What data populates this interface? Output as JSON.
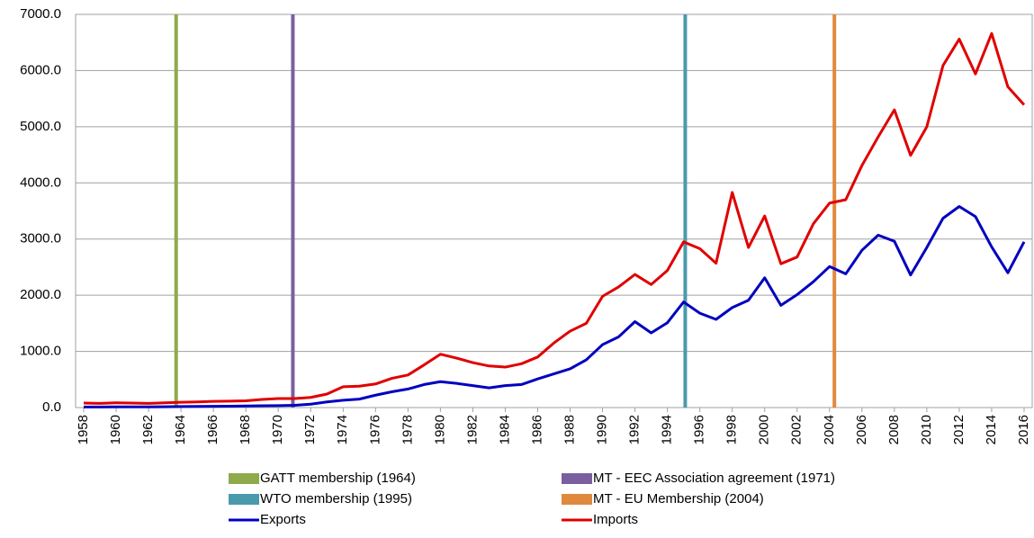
{
  "chart_data": {
    "type": "line",
    "x": [
      1958,
      1959,
      1960,
      1961,
      1962,
      1963,
      1964,
      1965,
      1966,
      1967,
      1968,
      1969,
      1970,
      1971,
      1972,
      1973,
      1974,
      1975,
      1976,
      1977,
      1978,
      1979,
      1980,
      1981,
      1982,
      1983,
      1984,
      1985,
      1986,
      1987,
      1988,
      1989,
      1990,
      1991,
      1992,
      1993,
      1994,
      1995,
      1996,
      1997,
      1998,
      1999,
      2000,
      2001,
      2002,
      2003,
      2004,
      2005,
      2006,
      2007,
      2008,
      2009,
      2010,
      2011,
      2012,
      2013,
      2014,
      2015,
      2016
    ],
    "xlim": [
      1957.5,
      2016.5
    ],
    "xticks": [
      1958,
      1960,
      1962,
      1964,
      1966,
      1968,
      1970,
      1972,
      1974,
      1976,
      1978,
      1980,
      1982,
      1984,
      1986,
      1988,
      1990,
      1992,
      1994,
      1996,
      1998,
      2000,
      2002,
      2004,
      2006,
      2008,
      2010,
      2012,
      2014,
      2016
    ],
    "ylim": [
      0,
      7000
    ],
    "yticks": [
      {
        "value": 0,
        "label": "0.0"
      },
      {
        "value": 1000,
        "label": "1000.0"
      },
      {
        "value": 2000,
        "label": "2000.0"
      },
      {
        "value": 3000,
        "label": "3000.0"
      },
      {
        "value": 4000,
        "label": "4000.0"
      },
      {
        "value": 5000,
        "label": "5000.0"
      },
      {
        "value": 6000,
        "label": "6000.0"
      },
      {
        "value": 7000,
        "label": "7000.0"
      }
    ],
    "grid": true,
    "events": [
      {
        "name": "GATT membership (1964)",
        "color": "#8faa4a",
        "x": 1963.7
      },
      {
        "name": "MT - EEC Association agreement (1971)",
        "color": "#7a5fa0",
        "x": 1970.9
      },
      {
        "name": "WTO membership (1995)",
        "color": "#4a9aad",
        "x": 1995.1
      },
      {
        "name": "MT - EU Membership (2004)",
        "color": "#e0893e",
        "x": 2004.3
      }
    ],
    "series": [
      {
        "name": "Exports",
        "color": "#0000c0",
        "values": [
          10,
          10,
          12,
          12,
          12,
          15,
          18,
          20,
          22,
          25,
          28,
          32,
          35,
          40,
          60,
          100,
          130,
          150,
          220,
          280,
          330,
          410,
          460,
          430,
          390,
          350,
          390,
          410,
          510,
          600,
          690,
          850,
          1120,
          1260,
          1530,
          1330,
          1510,
          1880,
          1680,
          1570,
          1780,
          1910,
          2310,
          1820,
          2010,
          2240,
          2510,
          2380,
          2800,
          3070,
          2960,
          2360,
          2850,
          3370,
          3580,
          3400,
          2860,
          2400,
          2950
        ]
      },
      {
        "name": "Imports",
        "color": "#e00000",
        "values": [
          80,
          75,
          85,
          80,
          75,
          85,
          95,
          100,
          110,
          115,
          120,
          145,
          160,
          160,
          180,
          240,
          370,
          380,
          420,
          520,
          580,
          760,
          950,
          880,
          800,
          740,
          720,
          780,
          900,
          1150,
          1360,
          1500,
          1980,
          2150,
          2370,
          2190,
          2440,
          2950,
          2830,
          2570,
          3830,
          2850,
          3410,
          2560,
          2680,
          3270,
          3640,
          3700,
          4310,
          4820,
          5300,
          4490,
          5000,
          6090,
          6560,
          5940,
          6660,
          5710,
          5390
        ]
      }
    ]
  }
}
